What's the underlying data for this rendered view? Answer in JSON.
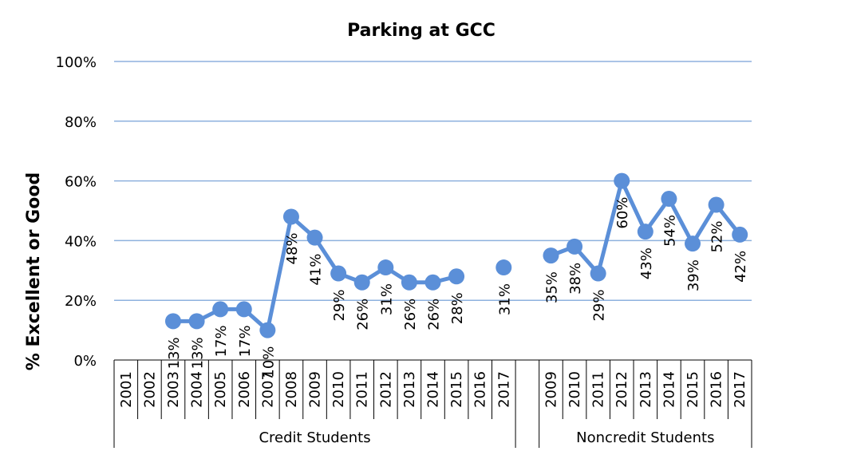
{
  "chart_data": {
    "type": "line",
    "title": "Parking at GCC",
    "ylabel": "% Excellent or Good",
    "ylim": [
      0,
      100
    ],
    "yticks": [
      "0%",
      "20%",
      "40%",
      "60%",
      "80%",
      "100%"
    ],
    "grid": true,
    "color": "#5b8fd8",
    "groups": [
      {
        "name": "Credit Students",
        "categories": [
          "2001",
          "2002",
          "2003",
          "2004",
          "2005",
          "2006",
          "2007",
          "2008",
          "2009",
          "2010",
          "2011",
          "2012",
          "2013",
          "2014",
          "2015",
          "2016",
          "2017"
        ],
        "values": [
          null,
          null,
          13,
          13,
          17,
          17,
          10,
          48,
          41,
          29,
          26,
          31,
          26,
          26,
          28,
          null,
          31
        ],
        "labels": [
          null,
          null,
          "13%",
          "13%",
          "17%",
          "17%",
          "10%",
          "48%",
          "41%",
          "29%",
          "26%",
          "31%",
          "26%",
          "26%",
          "28%",
          null,
          "31%"
        ]
      },
      {
        "name": "Noncredit Students",
        "categories": [
          "2009",
          "2010",
          "2011",
          "2012",
          "2013",
          "2014",
          "2015",
          "2016",
          "2017"
        ],
        "values": [
          35,
          38,
          29,
          60,
          43,
          54,
          39,
          52,
          42
        ],
        "labels": [
          "35%",
          "38%",
          "29%",
          "60%",
          "43%",
          "54%",
          "39%",
          "52%",
          "42%"
        ]
      }
    ]
  }
}
